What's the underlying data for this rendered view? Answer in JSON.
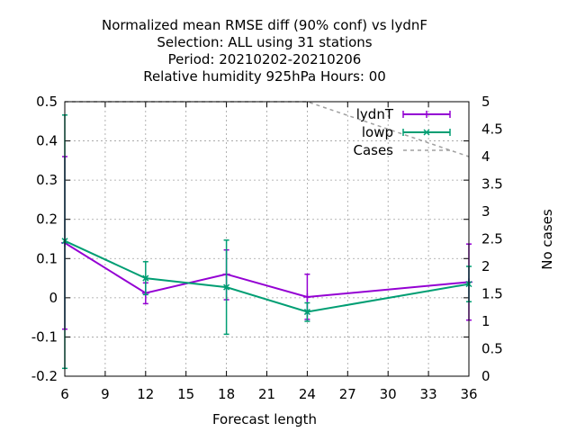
{
  "chart_data": {
    "type": "line",
    "title_lines": [
      "Normalized mean RMSE diff (90% conf) vs lydnF",
      "Selection: ALL using    31 stations",
      "Period: 20210202-20210206",
      "Relative humidity 925hPa   Hours:  00"
    ],
    "xlabel": "Forecast length",
    "ylabel": "",
    "y2label": "No cases",
    "xlim": [
      6,
      36
    ],
    "ylim": [
      -0.2,
      0.5
    ],
    "y2lim": [
      0,
      5
    ],
    "x_ticks": [
      6,
      9,
      12,
      15,
      18,
      21,
      24,
      27,
      30,
      33,
      36
    ],
    "y_ticks": [
      "-0.2",
      "-0.1",
      "0",
      "0.1",
      "0.2",
      "0.3",
      "0.4",
      "0.5"
    ],
    "y2_ticks": [
      "0",
      "0.5",
      "1",
      "1.5",
      "2",
      "2.5",
      "3",
      "3.5",
      "4",
      "4.5",
      "5"
    ],
    "grid": true,
    "legend_position": "top-right",
    "series": [
      {
        "name": "lydnT",
        "color": "#9400d3",
        "marker": "plus",
        "x": [
          6,
          12,
          18,
          24,
          36
        ],
        "y": [
          0.14,
          0.012,
          0.06,
          0.002,
          0.04
        ],
        "err_low": [
          -0.08,
          -0.015,
          -0.005,
          -0.055,
          -0.057
        ],
        "err_high": [
          0.36,
          0.038,
          0.122,
          0.06,
          0.137
        ]
      },
      {
        "name": "lowp",
        "color": "#009e73",
        "marker": "x",
        "x": [
          6,
          12,
          18,
          24,
          36
        ],
        "y": [
          0.145,
          0.05,
          0.027,
          -0.036,
          0.035
        ],
        "err_low": [
          -0.18,
          0.008,
          -0.093,
          -0.06,
          -0.01
        ],
        "err_high": [
          0.466,
          0.092,
          0.147,
          -0.013,
          0.08
        ]
      },
      {
        "name": "Cases",
        "color": "#a0a0a0",
        "axis": "y2",
        "dashed": true,
        "x": [
          6,
          24,
          36
        ],
        "y": [
          5,
          5,
          4
        ]
      }
    ]
  }
}
